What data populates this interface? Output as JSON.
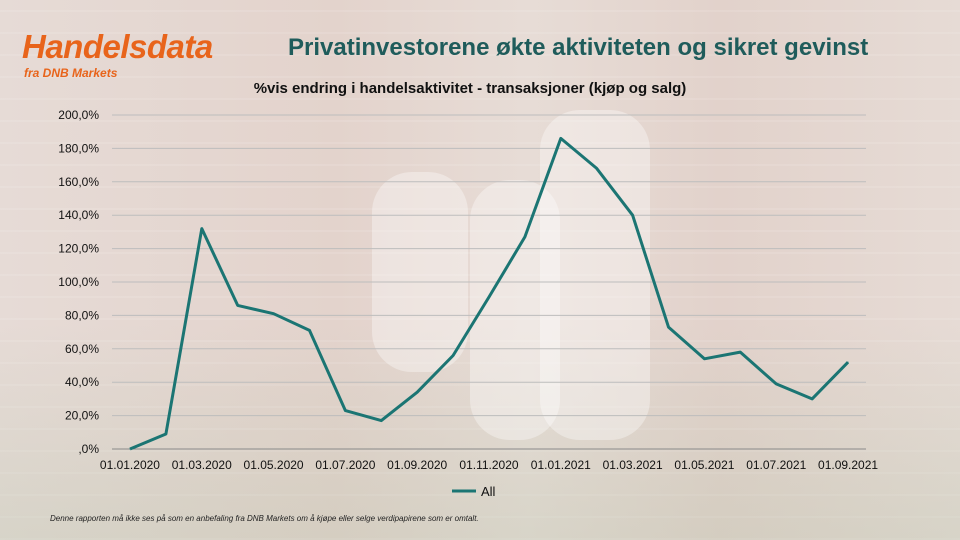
{
  "logo": {
    "title": "Handelsdata",
    "subtitle": "fra DNB Markets"
  },
  "headline": "Privatinvestorene økte aktiviteten og sikret gevinst",
  "disclaimer": "Denne rapporten må ikke ses på som en anbefaling fra DNB Markets om å kjøpe eller selge verdipapirene som er omtalt.",
  "colors": {
    "brand_orange": "#e8641b",
    "headline_teal": "#1f5c5b",
    "series_line": "#1b7573"
  },
  "chart_data": {
    "type": "line",
    "title": "%vis endring i handelsaktivitet - transaksjoner (kjøp og salg)",
    "xlabel": "",
    "ylabel": "",
    "x_ticks": [
      "01.01.2020",
      "01.03.2020",
      "01.05.2020",
      "01.07.2020",
      "01.09.2020",
      "01.11.2020",
      "01.01.2021",
      "01.03.2021",
      "01.05.2021",
      "01.07.2021",
      "01.09.2021"
    ],
    "y_ticks": [
      ",0%",
      "20,0%",
      "40,0%",
      "60,0%",
      "80,0%",
      "100,0%",
      "120,0%",
      "140,0%",
      "160,0%",
      "180,0%",
      "200,0%"
    ],
    "ylim": [
      0,
      200
    ],
    "grid": true,
    "legend_position": "bottom",
    "series": [
      {
        "name": "All",
        "x": [
          "2020-01",
          "2020-02",
          "2020-03",
          "2020-04",
          "2020-05",
          "2020-06",
          "2020-07",
          "2020-08",
          "2020-09",
          "2020-10",
          "2020-11",
          "2020-12",
          "2021-01",
          "2021-02",
          "2021-03",
          "2021-04",
          "2021-05",
          "2021-06",
          "2021-07",
          "2021-08",
          "2021-09"
        ],
        "values": [
          0,
          9,
          132,
          86,
          81,
          71,
          23,
          17,
          34,
          56,
          91,
          127,
          186,
          168,
          140,
          73,
          54,
          58,
          39,
          30,
          52
        ]
      }
    ]
  }
}
